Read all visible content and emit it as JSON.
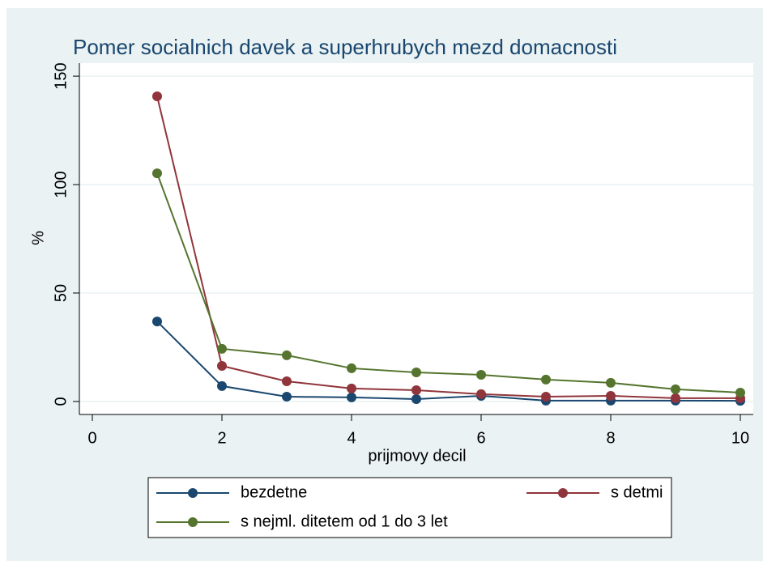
{
  "chart_data": {
    "type": "line",
    "title": "Pomer socialnich davek a superhrubych mezd domacnosti",
    "x_label": "prijmovy decil",
    "y_label": "%",
    "x": [
      1,
      2,
      3,
      4,
      5,
      6,
      7,
      8,
      9,
      10
    ],
    "series": [
      {
        "name": "bezdetne",
        "color": "#1a476f",
        "values": [
          36.9,
          7.1,
          2.2,
          1.9,
          1.1,
          2.6,
          0.4,
          0.4,
          0.4,
          0.3
        ]
      },
      {
        "name": "s detmi",
        "color": "#90353b",
        "values": [
          140.7,
          16.4,
          9.3,
          6.0,
          5.2,
          3.4,
          2.2,
          2.6,
          1.5,
          1.5
        ]
      },
      {
        "name": "s nejml. ditetem od 1 do 3 let",
        "color": "#55752f",
        "values": [
          105.2,
          24.3,
          21.3,
          15.3,
          13.4,
          12.3,
          10.1,
          8.6,
          5.6,
          4.1
        ]
      }
    ],
    "xlim": [
      -0.2,
      10.2
    ],
    "xticks": [
      0,
      2,
      4,
      6,
      8,
      10
    ],
    "ylim": [
      -6,
      156
    ],
    "yticks": [
      0,
      50,
      100,
      150
    ],
    "grid": true,
    "legend": "bottom"
  }
}
